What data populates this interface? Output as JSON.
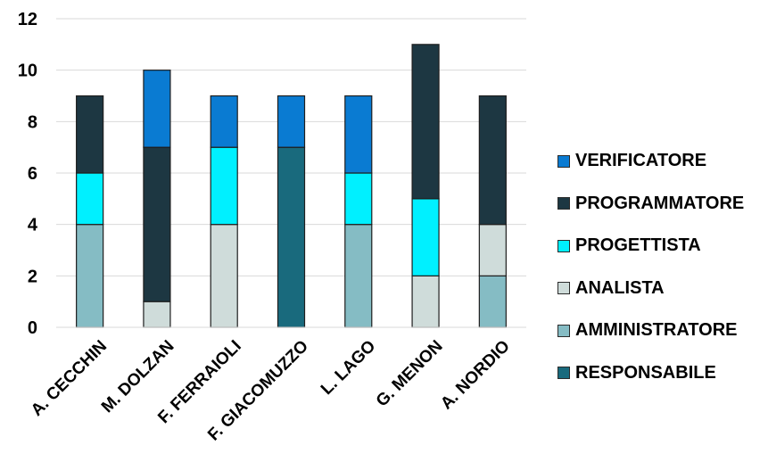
{
  "chart_data": {
    "type": "bar",
    "stacked": true,
    "categories": [
      "A. CECCHIN",
      "M. DOLZAN",
      "F. FERRAIOLI",
      "F. GIACOMUZZO",
      "L. LAGO",
      "G. MENON",
      "A. NORDIO"
    ],
    "series": [
      {
        "name": "RESPONSABILE",
        "color": "#196a7d",
        "values": [
          0,
          0,
          0,
          7,
          0,
          0,
          0
        ]
      },
      {
        "name": "AMMINISTRATORE",
        "color": "#85bcc4",
        "values": [
          4,
          0,
          0,
          0,
          4,
          0,
          2
        ]
      },
      {
        "name": "ANALISTA",
        "color": "#cfdcda",
        "values": [
          0,
          1,
          4,
          0,
          0,
          2,
          2
        ]
      },
      {
        "name": "PROGETTISTA",
        "color": "#00f0ff",
        "values": [
          2,
          0,
          3,
          0,
          2,
          3,
          0
        ]
      },
      {
        "name": "PROGRAMMATORE",
        "color": "#1d3742",
        "values": [
          3,
          6,
          0,
          0,
          0,
          6,
          5
        ]
      },
      {
        "name": "VERIFICATORE",
        "color": "#0a7bd2",
        "values": [
          0,
          3,
          2,
          2,
          3,
          0,
          0
        ]
      }
    ],
    "yticks": [
      "0",
      "2",
      "4",
      "6",
      "8",
      "10",
      "12"
    ],
    "ylim": [
      0,
      12
    ],
    "grid": true,
    "legend_position": "right",
    "title": "",
    "xlabel": "",
    "ylabel": ""
  }
}
